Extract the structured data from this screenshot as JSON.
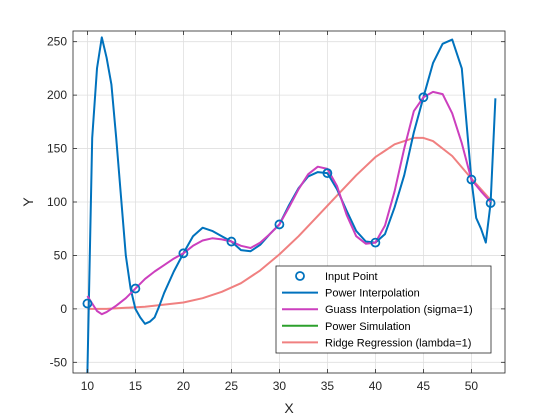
{
  "chart_data": {
    "type": "line",
    "xlabel": "X",
    "ylabel": "Y",
    "xlim": [
      8.5,
      53.5
    ],
    "ylim": [
      -60,
      260
    ],
    "xticks": [
      10,
      15,
      20,
      25,
      30,
      35,
      40,
      45,
      50
    ],
    "yticks": [
      -50,
      0,
      50,
      100,
      150,
      200,
      250
    ],
    "grid": true,
    "legend_position": "bottom-right",
    "series": [
      {
        "name": "Input Point",
        "kind": "markers",
        "color": "#0072BD",
        "x": [
          10,
          15,
          20,
          25,
          30,
          35,
          40,
          45,
          50,
          52
        ],
        "y": [
          5,
          19,
          52,
          63,
          79,
          127,
          62,
          198,
          121,
          99
        ]
      },
      {
        "name": "Power Interpolation",
        "kind": "line",
        "color": "#0072BD",
        "x": [
          10,
          10.5,
          11,
          11.5,
          12,
          12.5,
          13,
          13.5,
          14,
          14.5,
          15,
          15.5,
          16,
          16.5,
          17,
          17.5,
          18,
          19,
          20,
          21,
          22,
          23,
          24,
          25,
          26,
          27,
          28,
          29,
          30,
          31,
          32,
          33,
          34,
          35,
          36,
          37,
          38,
          39,
          40,
          41,
          42,
          43,
          44,
          45,
          46,
          47,
          48,
          49,
          50,
          50.5,
          51,
          51.5,
          52,
          52.5
        ],
        "y": [
          -60,
          160,
          225,
          254,
          235,
          210,
          160,
          105,
          50,
          19,
          0,
          -8,
          -14,
          -12,
          -8,
          3,
          15,
          35,
          52,
          68,
          76,
          73,
          68,
          63,
          55,
          54,
          60,
          70,
          79,
          97,
          113,
          124,
          128,
          127,
          112,
          92,
          73,
          63,
          62,
          70,
          95,
          125,
          165,
          198,
          230,
          248,
          252,
          225,
          121,
          85,
          75,
          62,
          99,
          197
        ]
      },
      {
        "name": "Guass Interpolation (sigma=1)",
        "kind": "line",
        "color": "#CC3FBE",
        "x": [
          10,
          11,
          11.5,
          12,
          13,
          14,
          15,
          16,
          17,
          18,
          19,
          20,
          21,
          22,
          23,
          24,
          25,
          26,
          27,
          28,
          29,
          30,
          31,
          32,
          33,
          34,
          35,
          36,
          37,
          38,
          39,
          40,
          41,
          42,
          43,
          44,
          45,
          46,
          47,
          48,
          49,
          50,
          51,
          52
        ],
        "y": [
          12,
          -2,
          -5,
          -3,
          3,
          10,
          19,
          28,
          35,
          41,
          47,
          52,
          59,
          64,
          66,
          65,
          63,
          59,
          57,
          62,
          70,
          79,
          95,
          112,
          126,
          133,
          131,
          115,
          88,
          68,
          61,
          62,
          78,
          110,
          150,
          185,
          198,
          203,
          201,
          183,
          155,
          121,
          110,
          100
        ]
      },
      {
        "name": "Power Simulation",
        "kind": "line",
        "color": "#2CA02C",
        "x": [],
        "y": []
      },
      {
        "name": "Ridge Regression (lambda=1)",
        "kind": "line",
        "color": "#F08080",
        "x": [
          10,
          12,
          14,
          16,
          18,
          20,
          22,
          24,
          26,
          28,
          30,
          32,
          34,
          36,
          38,
          40,
          42,
          44,
          45,
          46,
          48,
          50,
          52
        ],
        "y": [
          0,
          0,
          1,
          2,
          4,
          6,
          10,
          16,
          24,
          36,
          51,
          68,
          87,
          106,
          125,
          142,
          154,
          160,
          160,
          157,
          143,
          122,
          102
        ]
      }
    ]
  }
}
